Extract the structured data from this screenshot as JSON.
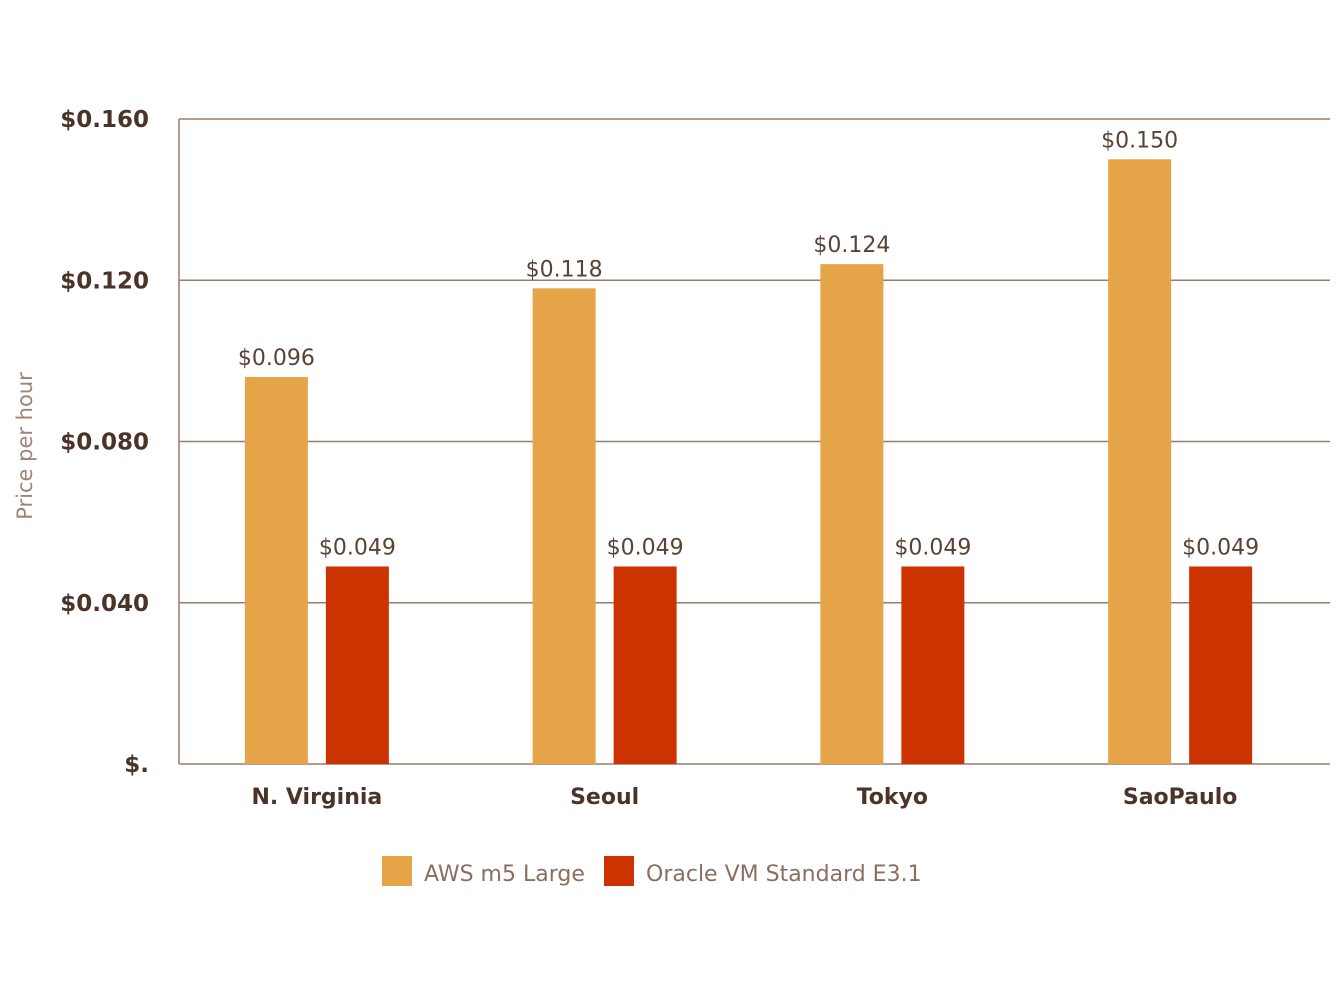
{
  "chart_data": {
    "type": "bar",
    "title": "",
    "xlabel": "",
    "ylabel": "Price per hour",
    "categories": [
      "N. Virginia",
      "Seoul",
      "Tokyo",
      "SaoPaulo"
    ],
    "series": [
      {
        "name": "AWS m5 Large",
        "color": "#e4a447",
        "values": [
          0.096,
          0.118,
          0.124,
          0.15
        ],
        "labels": [
          "$0.096",
          "$0.118",
          "$0.124",
          "$0.150"
        ]
      },
      {
        "name": "Oracle VM Standard E3.1",
        "color": "#cc3300",
        "values": [
          0.049,
          0.049,
          0.049,
          0.049
        ],
        "labels": [
          "$0.049",
          "$0.049",
          "$0.049",
          "$0.049"
        ]
      }
    ],
    "ylim": [
      0,
      0.16
    ],
    "yticks": [
      0,
      0.04,
      0.08,
      0.12,
      0.16
    ],
    "ytick_labels": [
      "$.",
      "$0.040",
      "$0.080",
      "$0.120",
      "$0.160"
    ],
    "grid": true,
    "legend_position": "bottom"
  }
}
